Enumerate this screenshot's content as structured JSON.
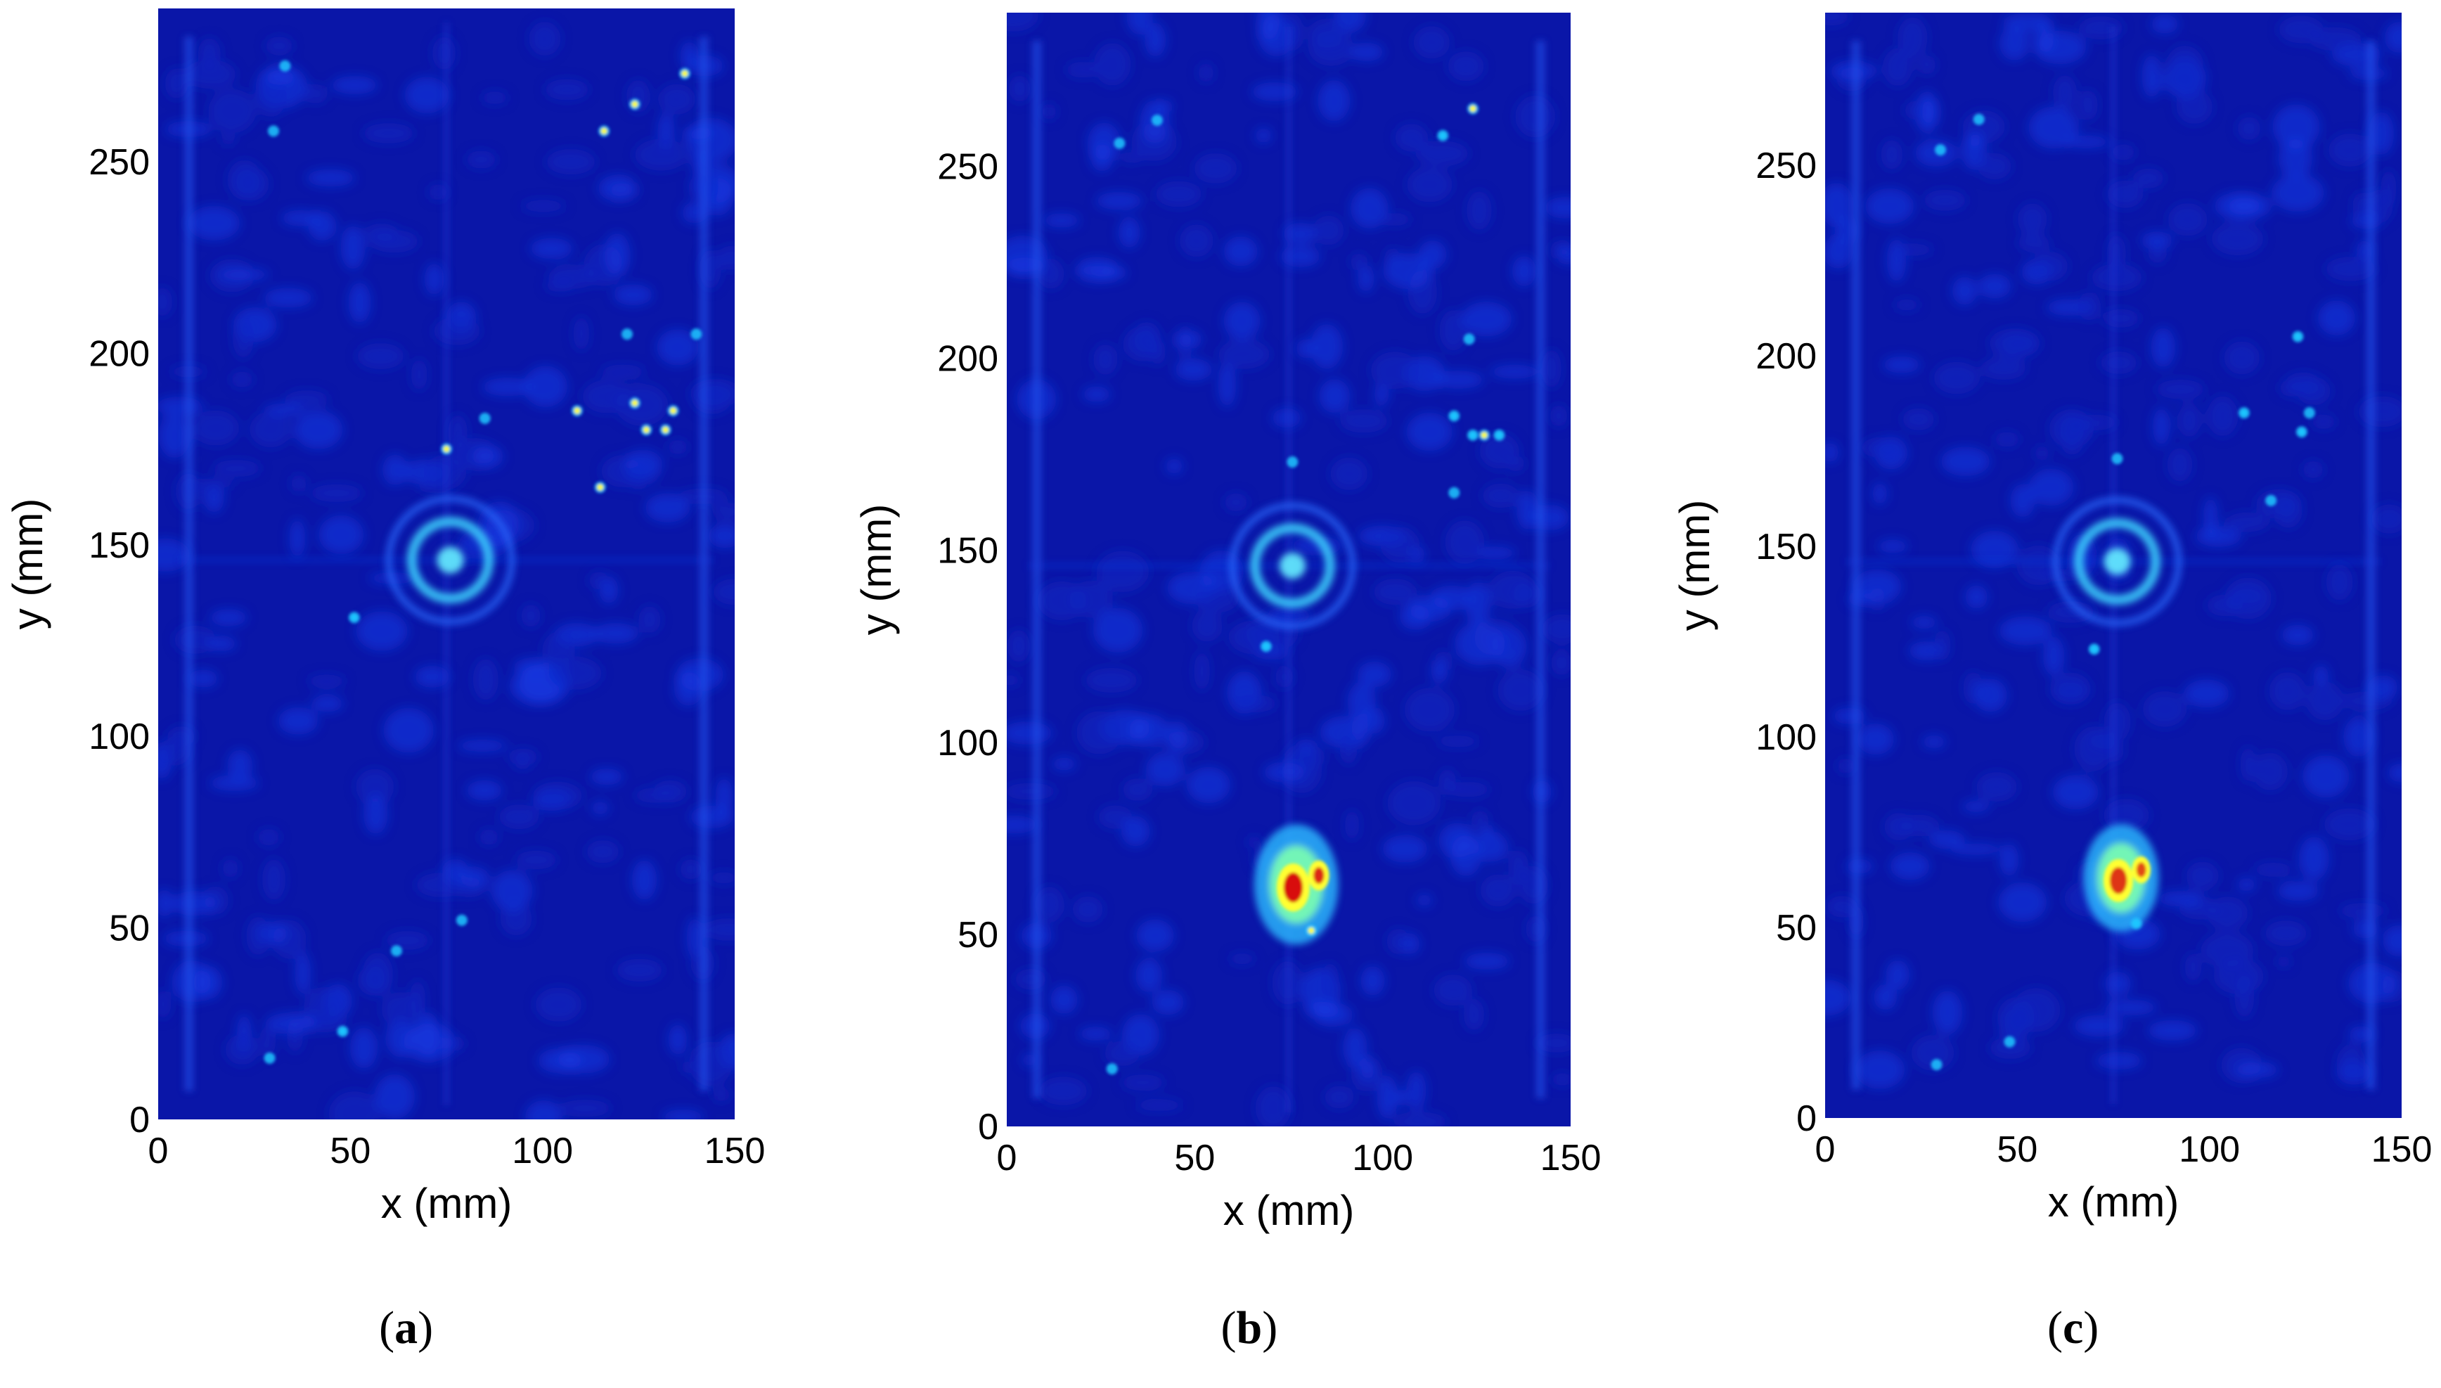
{
  "colors": {
    "background": "#0a16a8",
    "low": "#0d2fd9",
    "mid": "#1ec8ff",
    "high": "#ffff30",
    "peak": "#d81010",
    "axis": "#000000"
  },
  "chart_data": [
    {
      "type": "heatmap",
      "panel": "a",
      "caption_letter": "a",
      "xlabel": "x (mm)",
      "ylabel": "y (mm)",
      "xlim": [
        0,
        150
      ],
      "ylim": [
        0,
        290
      ],
      "xticks": [
        0,
        50,
        100,
        150
      ],
      "yticks": [
        0,
        50,
        100,
        150,
        200,
        250
      ],
      "xtick_labels": [
        "0",
        "50",
        "100",
        "150"
      ],
      "ytick_labels": [
        "0",
        "50",
        "100",
        "150",
        "200",
        "250"
      ],
      "features": [
        {
          "name": "ring-feature",
          "x": 76,
          "y": 146,
          "intensity": 0.5,
          "size_mm": 10
        },
        {
          "name": "defect-cluster",
          "x": 77,
          "y": 63,
          "intensity": 0.0,
          "size_mm": 8
        }
      ],
      "spots": [
        {
          "x": 75,
          "y": 175,
          "v": 0.8
        },
        {
          "x": 109,
          "y": 185,
          "v": 0.75
        },
        {
          "x": 115,
          "y": 165,
          "v": 0.7
        },
        {
          "x": 124,
          "y": 187,
          "v": 0.6
        },
        {
          "x": 127,
          "y": 180,
          "v": 0.65
        },
        {
          "x": 132,
          "y": 180,
          "v": 0.7
        },
        {
          "x": 134,
          "y": 185,
          "v": 0.6
        },
        {
          "x": 124,
          "y": 265,
          "v": 0.7
        },
        {
          "x": 116,
          "y": 258,
          "v": 0.6
        },
        {
          "x": 137,
          "y": 273,
          "v": 0.6
        },
        {
          "x": 33,
          "y": 275,
          "v": 0.4
        },
        {
          "x": 30,
          "y": 258,
          "v": 0.35
        },
        {
          "x": 51,
          "y": 131,
          "v": 0.5
        },
        {
          "x": 79,
          "y": 52,
          "v": 0.4
        },
        {
          "x": 48,
          "y": 23,
          "v": 0.5
        },
        {
          "x": 29,
          "y": 16,
          "v": 0.4
        },
        {
          "x": 62,
          "y": 44,
          "v": 0.3
        },
        {
          "x": 122,
          "y": 205,
          "v": 0.4
        },
        {
          "x": 140,
          "y": 205,
          "v": 0.35
        },
        {
          "x": 85,
          "y": 183,
          "v": 0.35
        }
      ]
    },
    {
      "type": "heatmap",
      "panel": "b",
      "caption_letter": "b",
      "xlabel": "x (mm)",
      "ylabel": "y (mm)",
      "xlim": [
        0,
        150
      ],
      "ylim": [
        0,
        290
      ],
      "xticks": [
        0,
        50,
        100,
        150
      ],
      "yticks": [
        0,
        50,
        100,
        150,
        200,
        250
      ],
      "xtick_labels": [
        "0",
        "50",
        "100",
        "150"
      ],
      "ytick_labels": [
        "0",
        "50",
        "100",
        "150",
        "200",
        "250"
      ],
      "features": [
        {
          "name": "ring-feature",
          "x": 76,
          "y": 146,
          "intensity": 0.45,
          "size_mm": 10
        },
        {
          "name": "defect-cluster",
          "x": 77,
          "y": 63,
          "intensity": 1.0,
          "size_mm": 8
        }
      ],
      "spots": [
        {
          "x": 124,
          "y": 265,
          "v": 0.6
        },
        {
          "x": 116,
          "y": 258,
          "v": 0.5
        },
        {
          "x": 119,
          "y": 185,
          "v": 0.5
        },
        {
          "x": 124,
          "y": 180,
          "v": 0.55
        },
        {
          "x": 127,
          "y": 180,
          "v": 0.6
        },
        {
          "x": 131,
          "y": 180,
          "v": 0.5
        },
        {
          "x": 119,
          "y": 165,
          "v": 0.45
        },
        {
          "x": 76,
          "y": 173,
          "v": 0.45
        },
        {
          "x": 69,
          "y": 125,
          "v": 0.55
        },
        {
          "x": 81,
          "y": 51,
          "v": 0.6
        },
        {
          "x": 123,
          "y": 205,
          "v": 0.4
        },
        {
          "x": 28,
          "y": 15,
          "v": 0.4
        },
        {
          "x": 40,
          "y": 262,
          "v": 0.35
        },
        {
          "x": 30,
          "y": 256,
          "v": 0.3
        }
      ]
    },
    {
      "type": "heatmap",
      "panel": "c",
      "caption_letter": "c",
      "xlabel": "x (mm)",
      "ylabel": "y (mm)",
      "xlim": [
        0,
        150
      ],
      "ylim": [
        0,
        290
      ],
      "xticks": [
        0,
        50,
        100,
        150
      ],
      "yticks": [
        0,
        50,
        100,
        150,
        200,
        250
      ],
      "xtick_labels": [
        "0",
        "50",
        "100",
        "150"
      ],
      "ytick_labels": [
        "0",
        "50",
        "100",
        "150",
        "200",
        "250"
      ],
      "features": [
        {
          "name": "ring-feature",
          "x": 76,
          "y": 146,
          "intensity": 0.45,
          "size_mm": 10
        },
        {
          "name": "defect-cluster",
          "x": 77,
          "y": 63,
          "intensity": 0.85,
          "size_mm": 7
        }
      ],
      "spots": [
        {
          "x": 109,
          "y": 185,
          "v": 0.55
        },
        {
          "x": 124,
          "y": 180,
          "v": 0.5
        },
        {
          "x": 126,
          "y": 185,
          "v": 0.45
        },
        {
          "x": 123,
          "y": 205,
          "v": 0.5
        },
        {
          "x": 116,
          "y": 162,
          "v": 0.45
        },
        {
          "x": 70,
          "y": 123,
          "v": 0.5
        },
        {
          "x": 81,
          "y": 51,
          "v": 0.55
        },
        {
          "x": 76,
          "y": 173,
          "v": 0.4
        },
        {
          "x": 48,
          "y": 20,
          "v": 0.35
        },
        {
          "x": 29,
          "y": 14,
          "v": 0.35
        },
        {
          "x": 40,
          "y": 262,
          "v": 0.3
        },
        {
          "x": 30,
          "y": 254,
          "v": 0.3
        }
      ]
    }
  ]
}
